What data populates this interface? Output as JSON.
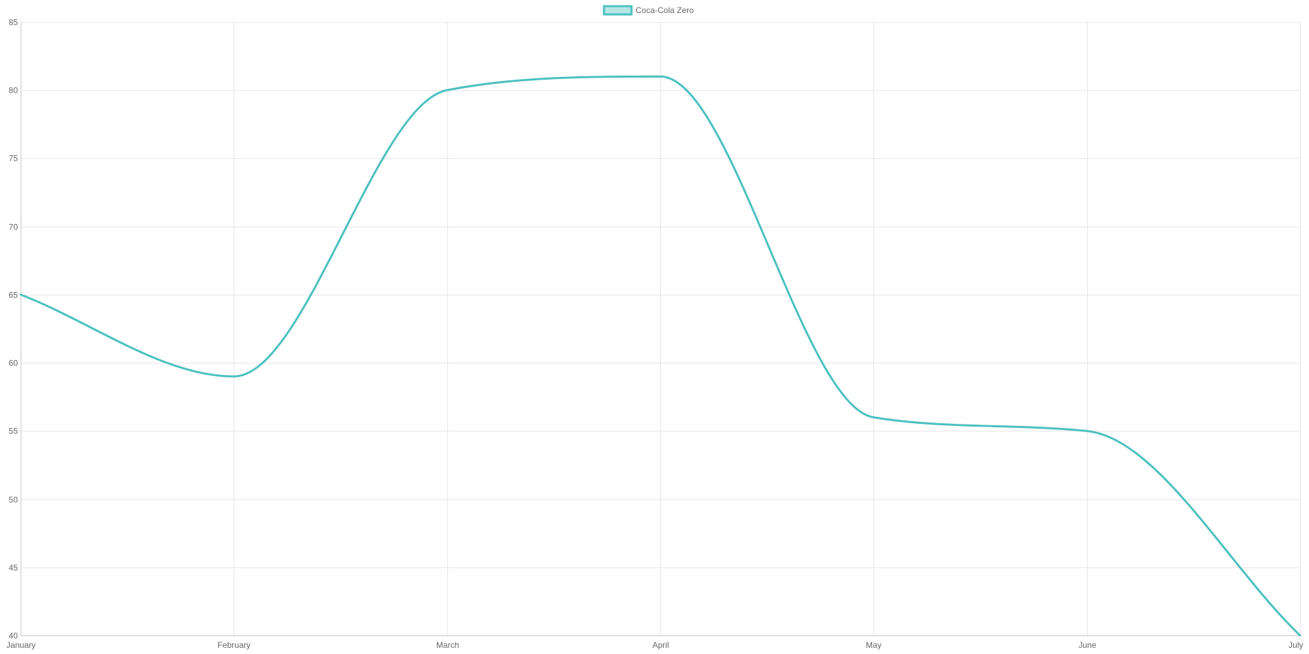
{
  "chart_data": {
    "type": "line",
    "categories": [
      "January",
      "February",
      "March",
      "April",
      "May",
      "June",
      "July"
    ],
    "series": [
      {
        "name": "Coca-Cola Zero",
        "values": [
          65,
          59,
          80,
          81,
          56,
          55,
          40
        ],
        "color": "#4bc0c0",
        "fill_color": "#4bc0c066"
      }
    ],
    "ylim": [
      40,
      85
    ],
    "y_ticks": [
      40,
      45,
      50,
      55,
      60,
      65,
      70,
      75,
      80,
      85
    ],
    "grid": true,
    "legend_position": "top",
    "smooth": true,
    "grid_color": "#e6e6e6",
    "axis_color": "#c8c8c8",
    "tick_label_color": "#666666"
  }
}
